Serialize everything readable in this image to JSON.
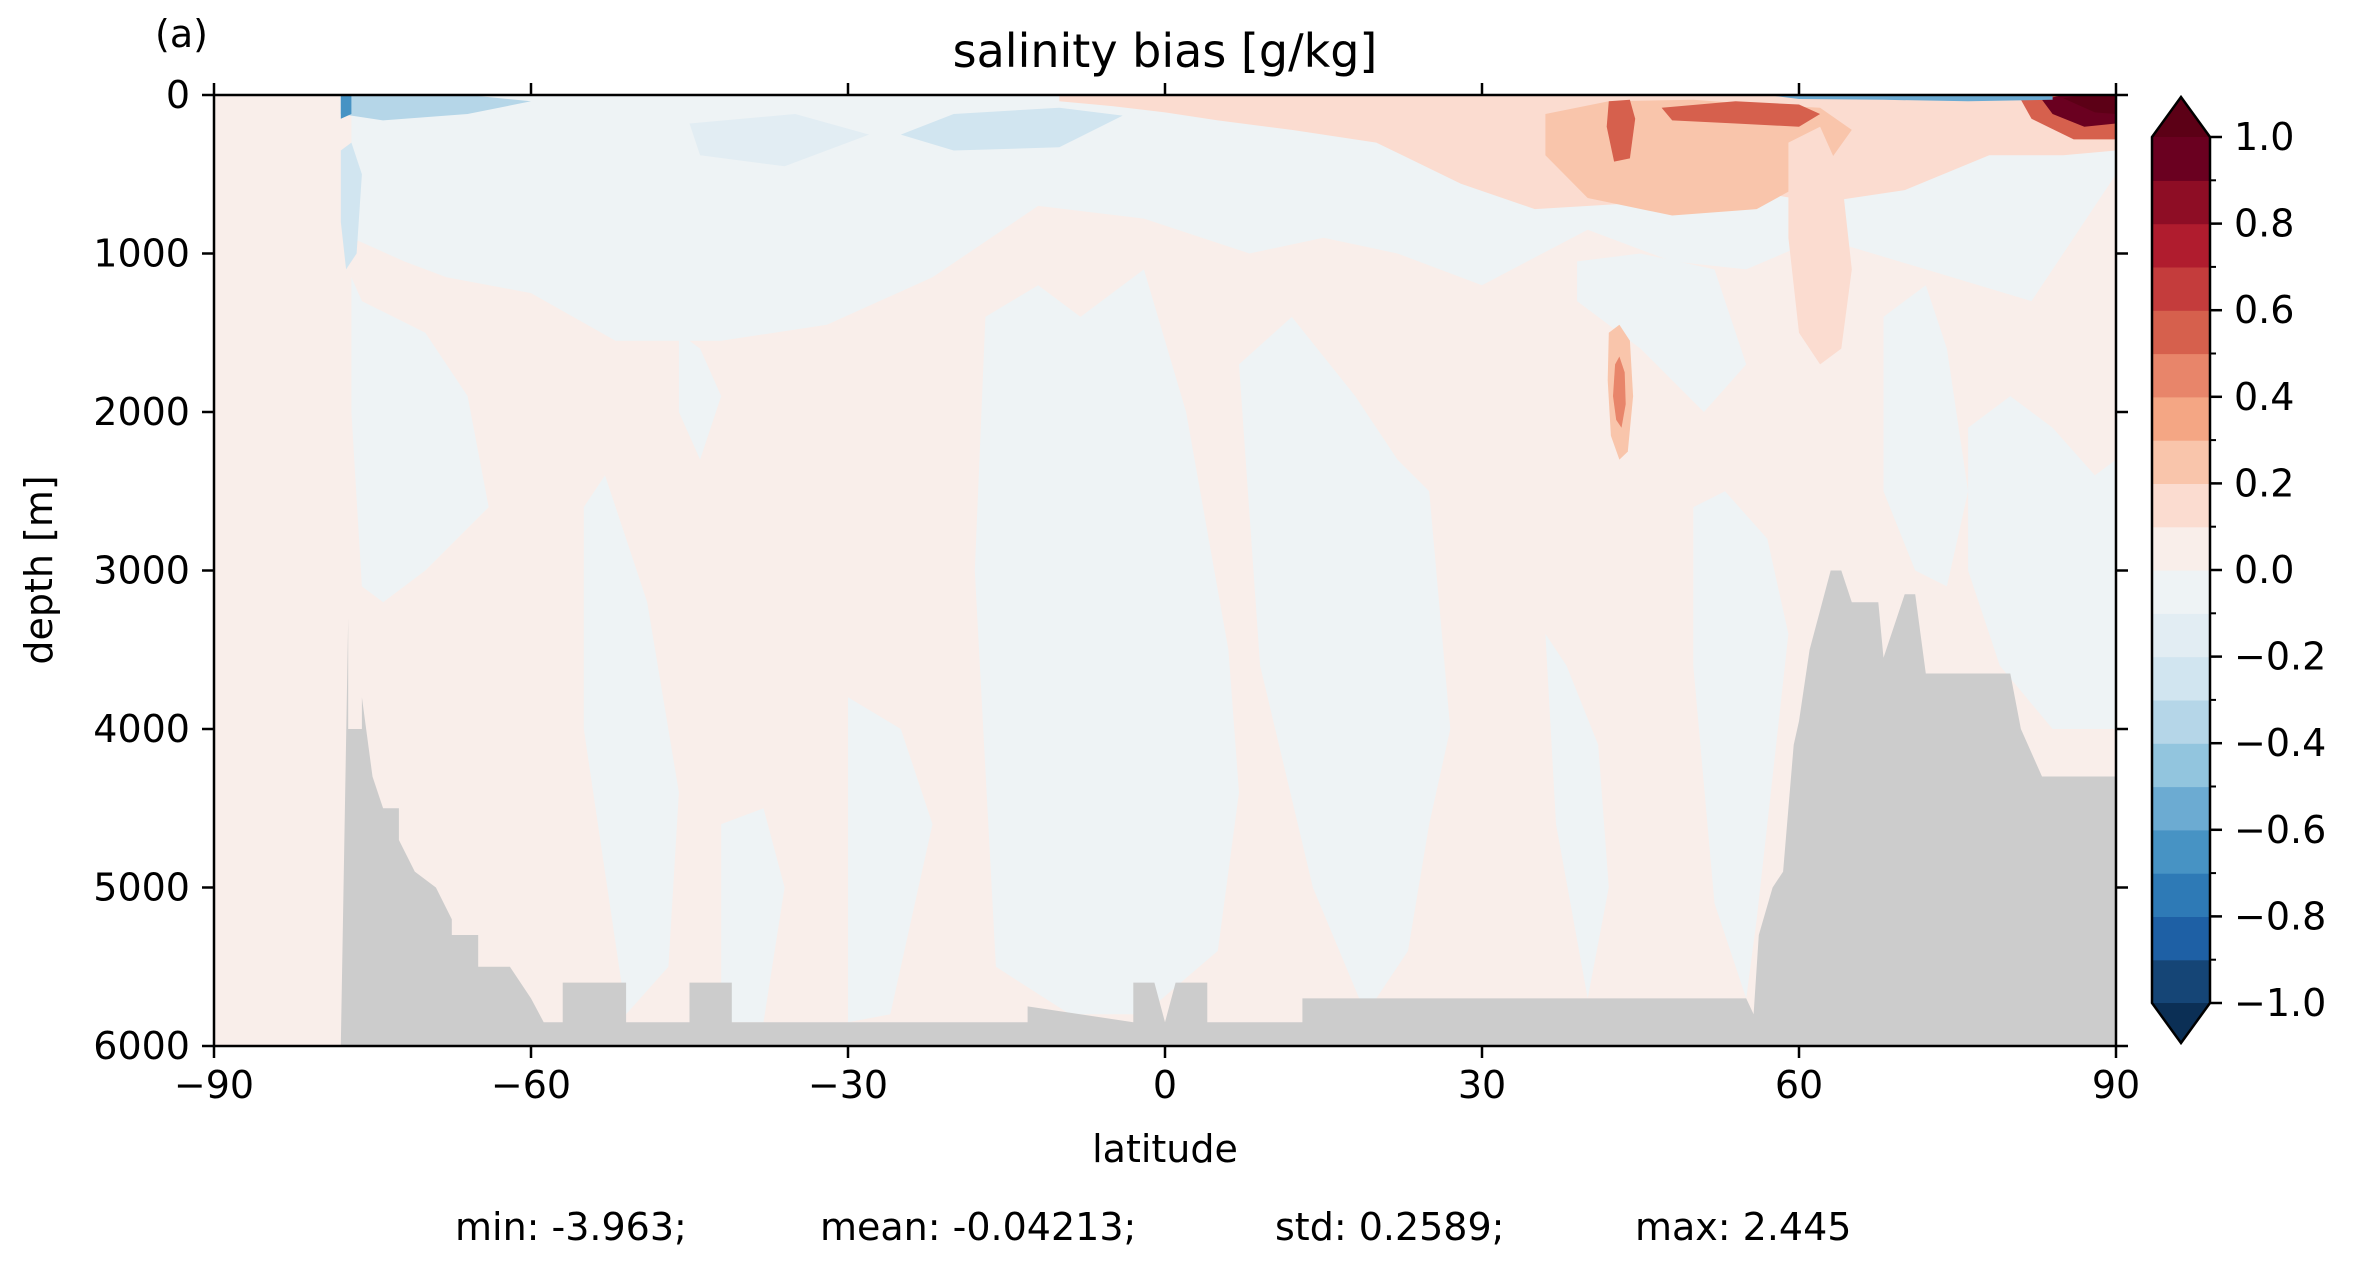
{
  "panel_label": "(a)",
  "stats": {
    "min": "min: -3.963;",
    "mean": "mean: -0.04213;",
    "std": "std: 0.2589;",
    "max": "max: 2.445"
  },
  "chart_data": {
    "type": "heatmap",
    "title": "salinity bias [g/kg]",
    "xlabel": "latitude",
    "ylabel": "depth [m]",
    "xlim": [
      -90,
      90
    ],
    "ylim": [
      6000,
      0
    ],
    "y_inverted": true,
    "x_ticks": [
      -90,
      -60,
      -30,
      0,
      30,
      60,
      90
    ],
    "x_tick_labels": [
      "−90",
      "−60",
      "−30",
      "0",
      "30",
      "60",
      "90"
    ],
    "y_ticks": [
      0,
      1000,
      2000,
      3000,
      4000,
      5000,
      6000
    ],
    "y_tick_labels": [
      "0",
      "1000",
      "2000",
      "3000",
      "4000",
      "5000",
      "6000"
    ],
    "colorbar": {
      "cmap": "RdBu_r",
      "extend": "both",
      "levels": [
        -1.0,
        -0.9,
        -0.8,
        -0.7,
        -0.6,
        -0.5,
        -0.4,
        -0.3,
        -0.2,
        -0.1,
        0.0,
        0.1,
        0.2,
        0.3,
        0.4,
        0.5,
        0.6,
        0.7,
        0.8,
        0.9,
        1.0
      ],
      "colors": [
        "#154576",
        "#1e60a5",
        "#2e7ab6",
        "#4793c4",
        "#6cabd2",
        "#92c5de",
        "#b5d6e8",
        "#d1e5f0",
        "#e2edf3",
        "#eef3f5",
        "#f9eeea",
        "#fbdcd0",
        "#f9c5ab",
        "#f4a684",
        "#e8856a",
        "#d6604d",
        "#c43c3c",
        "#b01c2e",
        "#8e0d25",
        "#6a0020"
      ],
      "under_color": "#0b2f55",
      "over_color": "#5c0016",
      "ticks": [
        1.0,
        0.8,
        0.6,
        0.4,
        0.2,
        0.0,
        -0.2,
        -0.4,
        -0.6,
        -0.8,
        -1.0
      ],
      "tick_labels": [
        "1.0",
        "0.8",
        "0.6",
        "0.4",
        "0.2",
        "0.0",
        "−0.2",
        "−0.4",
        "−0.6",
        "−0.8",
        "−1.0"
      ]
    },
    "background_bias": 0.02,
    "land_color": "#cccccc",
    "bathymetry": {
      "lat": [
        -90,
        -78,
        -77.3,
        -77.3,
        -76,
        -76,
        -75,
        -74,
        -72.5,
        -72.5,
        -71,
        -69,
        -67.5,
        -67.5,
        -65,
        -65,
        -62,
        -60,
        -58.8,
        -57,
        -57,
        -51,
        -51,
        -45,
        -45,
        -41,
        -41,
        -35,
        -13,
        -13,
        -3,
        -3,
        -1,
        0,
        1,
        4,
        4,
        13,
        13,
        55,
        55.7,
        56.2,
        57.5,
        58.5,
        59,
        59.5,
        60,
        61,
        63,
        64,
        65,
        67.5,
        68,
        70,
        71,
        72,
        80,
        81,
        83,
        84.5,
        90
      ],
      "depth": [
        6000,
        6000,
        3300,
        4000,
        4000,
        3800,
        4300,
        4500,
        4500,
        4700,
        4900,
        5000,
        5200,
        5300,
        5300,
        5500,
        5500,
        5700,
        5850,
        5850,
        5600,
        5600,
        5850,
        5850,
        5600,
        5600,
        5850,
        5850,
        5850,
        5750,
        5850,
        5600,
        5600,
        5850,
        5600,
        5600,
        5850,
        5850,
        5700,
        5700,
        5800,
        5300,
        5000,
        4900,
        4500,
        4100,
        3950,
        3500,
        3000,
        3000,
        3200,
        3200,
        3550,
        3150,
        3150,
        3650,
        3650,
        4000,
        4300,
        4300,
        4300
      ]
    },
    "bias_regions": [
      {
        "lat": [
          -90,
          90,
          90,
          -90
        ],
        "depth": [
          0,
          0,
          6000,
          6000
        ],
        "value": 0.02
      },
      {
        "lat": [
          -77,
          -52,
          -43,
          -35,
          -33,
          -25,
          -20,
          -12,
          -5,
          10,
          22,
          38,
          45,
          55,
          62,
          73,
          85,
          90,
          90,
          82,
          72,
          62,
          55,
          48,
          40,
          30,
          22,
          15,
          8,
          -2,
          -12,
          -22,
          -32,
          -42,
          -52,
          -60,
          -68,
          -72,
          -77
        ],
        "depth": [
          0,
          0,
          0,
          0,
          0,
          0,
          0,
          0,
          0,
          0,
          0,
          0,
          0,
          0,
          0,
          0,
          0,
          0,
          500,
          1300,
          1100,
          900,
          1100,
          1050,
          850,
          1200,
          1000,
          900,
          1000,
          780,
          700,
          1150,
          1450,
          1550,
          1550,
          1250,
          1150,
          1050,
          900
        ],
        "value": -0.06
      },
      {
        "lat": [
          -77,
          -76,
          -70,
          -66,
          -64,
          -70,
          -74,
          -76,
          -77
        ],
        "depth": [
          1150,
          1300,
          1500,
          1900,
          2600,
          3000,
          3200,
          3100,
          2000
        ],
        "value": -0.06
      },
      {
        "lat": [
          -46,
          -44,
          -42,
          -44,
          -46
        ],
        "depth": [
          1500,
          1600,
          1900,
          2300,
          2000
        ],
        "value": -0.06
      },
      {
        "lat": [
          -55,
          -53,
          -49,
          -46,
          -47,
          -51,
          -55
        ],
        "depth": [
          2600,
          2400,
          3200,
          4400,
          5500,
          5800,
          4000
        ],
        "value": -0.06
      },
      {
        "lat": [
          -42,
          -38,
          -36,
          -38,
          -42
        ],
        "depth": [
          4600,
          4500,
          5000,
          5850,
          5850
        ],
        "value": -0.06
      },
      {
        "lat": [
          -30,
          -25,
          -22,
          -26,
          -30
        ],
        "depth": [
          3800,
          4000,
          4600,
          5800,
          5850
        ],
        "value": -0.06
      },
      {
        "lat": [
          -17,
          -12,
          -8,
          -2,
          2,
          6,
          7,
          5,
          -2,
          -9,
          -16,
          -18
        ],
        "depth": [
          1400,
          1200,
          1400,
          1100,
          2000,
          3500,
          4400,
          5400,
          5800,
          5800,
          5500,
          3000
        ],
        "value": -0.06
      },
      {
        "lat": [
          7,
          12,
          18,
          22,
          25,
          27,
          25,
          23,
          19,
          14,
          9
        ],
        "depth": [
          1700,
          1400,
          1900,
          2300,
          2500,
          4000,
          4600,
          5400,
          5800,
          5000,
          3600
        ],
        "value": -0.06
      },
      {
        "lat": [
          36,
          38,
          41,
          42,
          40,
          37
        ],
        "depth": [
          3400,
          3600,
          4100,
          5000,
          5700,
          4600
        ],
        "value": -0.06
      },
      {
        "lat": [
          39,
          45,
          52,
          55,
          51,
          45,
          39
        ],
        "depth": [
          1050,
          1000,
          1100,
          1700,
          2000,
          1600,
          1300
        ],
        "value": -0.06
      },
      {
        "lat": [
          50,
          53,
          57,
          59,
          58,
          57,
          56,
          55,
          52,
          50
        ],
        "depth": [
          2600,
          2500,
          2800,
          3400,
          4000,
          4600,
          5200,
          5700,
          5100,
          3600
        ],
        "value": -0.06
      },
      {
        "lat": [
          68,
          72,
          74,
          76,
          74,
          71,
          68
        ],
        "depth": [
          1400,
          1200,
          1600,
          2500,
          3100,
          3000,
          2500
        ],
        "value": -0.06
      },
      {
        "lat": [
          76,
          80,
          84,
          88,
          90,
          90,
          84,
          79,
          76
        ],
        "depth": [
          2100,
          1900,
          2100,
          2400,
          2300,
          4000,
          4000,
          3600,
          3000
        ],
        "value": -0.06
      },
      {
        "lat": [
          -10,
          30,
          62,
          88,
          90,
          90,
          85,
          78,
          70,
          62,
          55,
          45,
          35,
          28,
          20,
          12,
          5,
          0,
          -5,
          -10
        ],
        "depth": [
          0,
          0,
          0,
          0,
          0,
          350,
          380,
          380,
          600,
          680,
          600,
          680,
          720,
          560,
          300,
          220,
          160,
          110,
          70,
          40
        ],
        "value": 0.15
      },
      {
        "lat": [
          36,
          42,
          50,
          56,
          62,
          65,
          62,
          56,
          48,
          40,
          36
        ],
        "depth": [
          120,
          40,
          30,
          60,
          80,
          220,
          500,
          720,
          760,
          650,
          380
        ],
        "value": 0.25
      },
      {
        "lat": [
          59,
          62,
          64,
          65,
          64,
          62,
          60,
          59
        ],
        "depth": [
          300,
          200,
          500,
          1100,
          1600,
          1700,
          1500,
          900
        ],
        "value": 0.15
      },
      {
        "lat": [
          42,
          43,
          44,
          44.3,
          43.8,
          43,
          42.2,
          41.9
        ],
        "depth": [
          1500,
          1450,
          1550,
          1900,
          2250,
          2300,
          2150,
          1800
        ],
        "value": 0.25
      },
      {
        "lat": [
          42.6,
          43,
          43.5,
          43.6,
          43.2,
          42.7,
          42.4
        ],
        "depth": [
          1700,
          1650,
          1750,
          1950,
          2100,
          2050,
          1900
        ],
        "value": 0.45
      },
      {
        "lat": [
          42,
          44,
          44.5,
          44,
          42.5,
          41.8
        ],
        "depth": [
          40,
          30,
          150,
          400,
          420,
          200
        ],
        "value": 0.55
      },
      {
        "lat": [
          47,
          54,
          60,
          62,
          60,
          54,
          48
        ],
        "depth": [
          80,
          40,
          60,
          120,
          200,
          180,
          160
        ],
        "value": 0.55
      },
      {
        "lat": [
          81,
          84,
          90,
          90,
          86,
          82
        ],
        "depth": [
          30,
          0,
          0,
          280,
          280,
          150
        ],
        "value": 0.55
      },
      {
        "lat": [
          83,
          85,
          90,
          90,
          87,
          84
        ],
        "depth": [
          30,
          0,
          0,
          180,
          200,
          120
        ],
        "value": 0.9
      },
      {
        "lat": [
          85,
          87,
          90,
          90,
          88
        ],
        "depth": [
          20,
          0,
          0,
          120,
          110
        ],
        "value": 1.2
      },
      {
        "lat": [
          -78,
          -74,
          -66,
          -60,
          -66,
          -74,
          -78
        ],
        "depth": [
          0,
          0,
          0,
          40,
          120,
          160,
          120
        ],
        "value": -0.35
      },
      {
        "lat": [
          -78,
          -77,
          -76,
          -76.5,
          -77.5,
          -78
        ],
        "depth": [
          350,
          300,
          500,
          1000,
          1100,
          800
        ],
        "value": -0.25
      },
      {
        "lat": [
          -78,
          -77,
          -77,
          -78
        ],
        "depth": [
          0,
          0,
          120,
          150
        ],
        "value": -0.7
      },
      {
        "lat": [
          -20,
          -10,
          -4,
          -10,
          -20,
          -25
        ],
        "depth": [
          120,
          80,
          130,
          330,
          350,
          250
        ],
        "value": -0.25
      },
      {
        "lat": [
          -45,
          -35,
          -28,
          -36,
          -44
        ],
        "depth": [
          180,
          120,
          250,
          450,
          380
        ],
        "value": -0.15
      },
      {
        "lat": [
          57,
          62,
          70,
          78,
          84,
          84,
          76,
          68,
          60
        ],
        "depth": [
          0,
          0,
          0,
          0,
          0,
          30,
          40,
          30,
          25
        ],
        "value": -0.55
      }
    ]
  }
}
